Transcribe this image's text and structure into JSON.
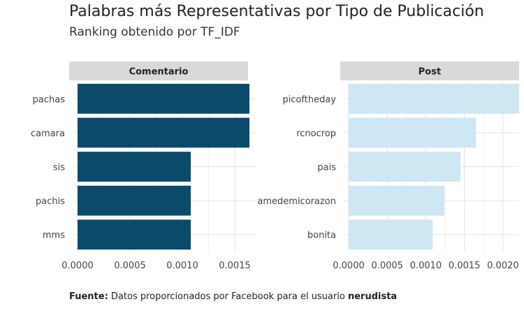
{
  "chart_data": {
    "type": "bar",
    "orientation": "horizontal",
    "title": "Palabras más Representativas por Tipo de Publicación",
    "subtitle": "Ranking obtenido por TF_IDF",
    "caption": {
      "label": "Fuente:",
      "text": " Datos proporcionados por Facebook para el usuario ",
      "user": "nerudista"
    },
    "grid": true,
    "panels": [
      {
        "name": "Comentario",
        "color": "#0b4a6b",
        "xlim": [
          0,
          0.0017
        ],
        "ticks": [
          0.0,
          0.0005,
          0.001,
          0.0015
        ],
        "tick_labels": [
          "0.0000",
          "0.0005",
          "0.0010",
          "0.0015"
        ],
        "categories": [
          "pachas",
          "camara",
          "sis",
          "pachis",
          "mms"
        ],
        "values": [
          0.00164,
          0.00164,
          0.00108,
          0.00108,
          0.00108
        ]
      },
      {
        "name": "Post",
        "color": "#cfe6f3",
        "xlim": [
          0,
          0.0022
        ],
        "ticks": [
          0.0,
          0.0005,
          0.001,
          0.0015,
          0.002
        ],
        "tick_labels": [
          "0.0000",
          "0.0005",
          "0.0010",
          "0.0015",
          "0.0020"
        ],
        "categories": [
          "picoftheday",
          "rcnocrop",
          "pais",
          "amedemicorazon",
          "bonita"
        ],
        "values": [
          0.00221,
          0.00165,
          0.00145,
          0.00124,
          0.00109
        ]
      }
    ]
  }
}
